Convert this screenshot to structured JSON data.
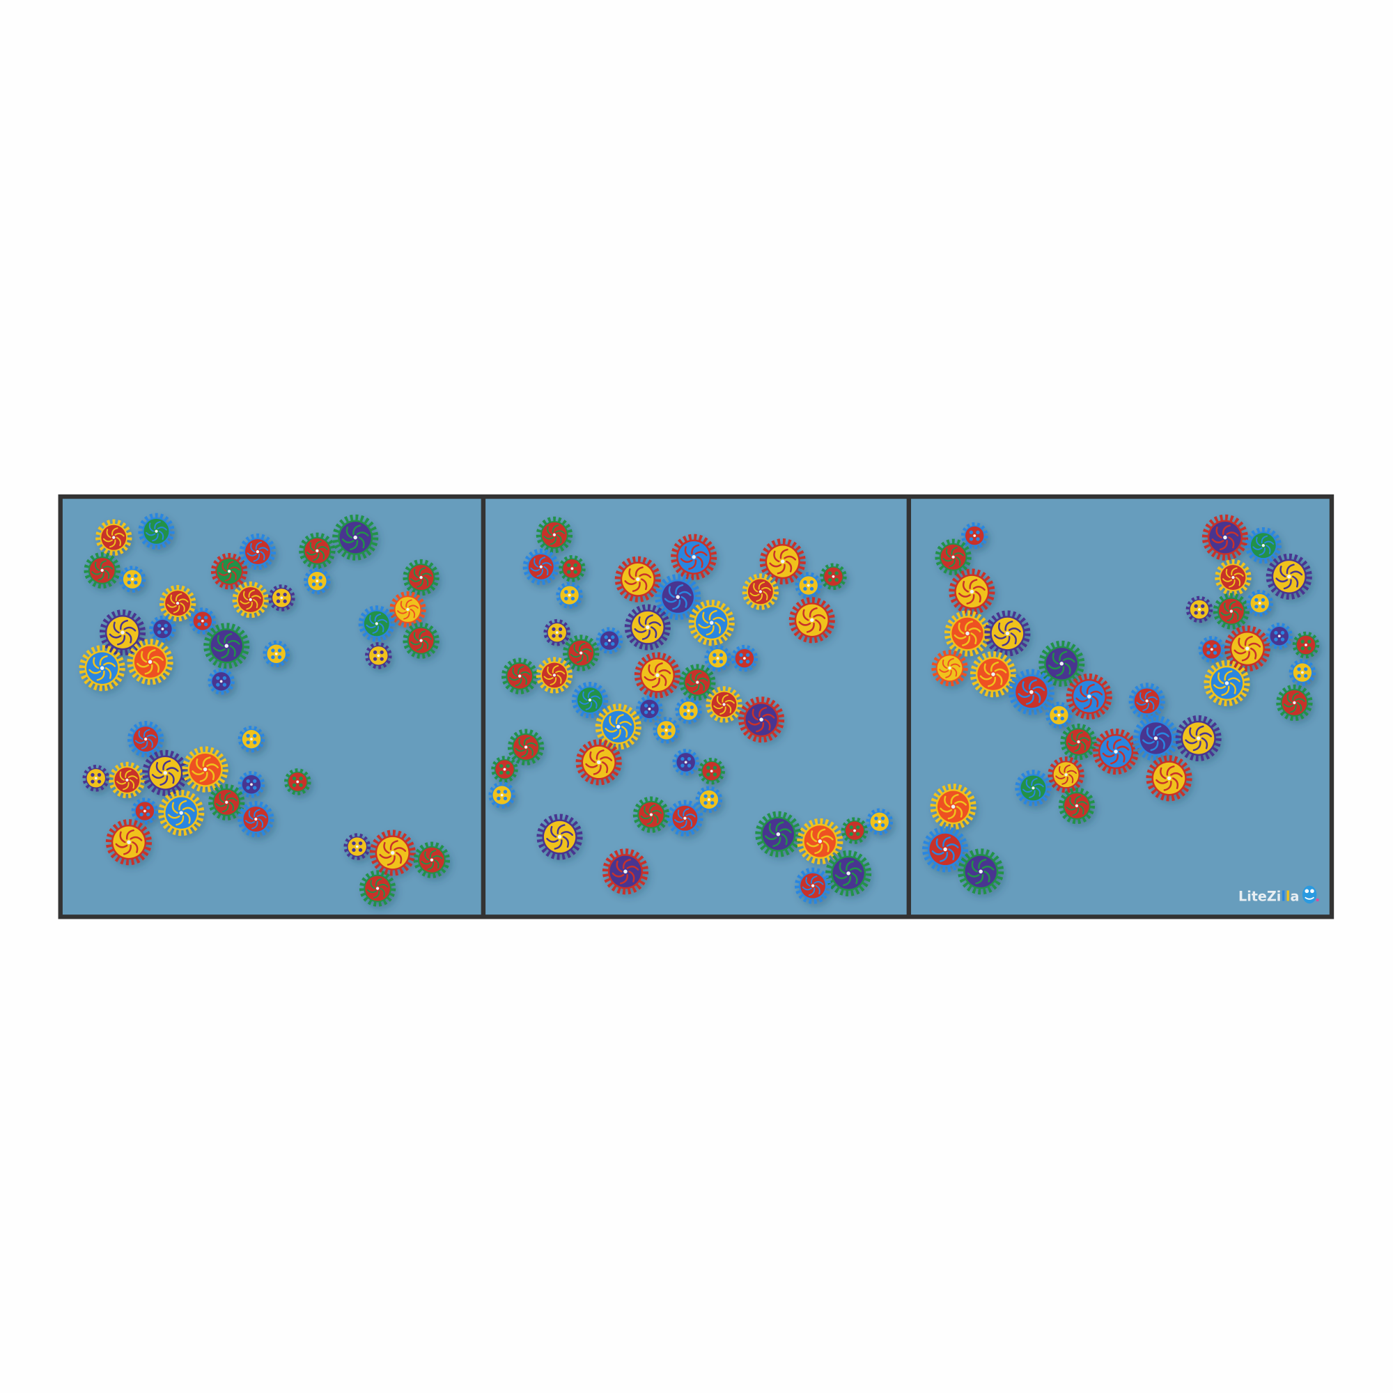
{
  "product": {
    "panel_count": 3,
    "logo": {
      "part1": "LiteZi",
      "part2": "l",
      "part3": "l",
      "part4": "a",
      "mascot": "blue-monster-mascot"
    }
  },
  "colors": {
    "background": "#fefefe",
    "frame": "#333333",
    "board": "#679dbd",
    "gear_red": "#c8302c",
    "gear_yellow": "#f0c21c",
    "gear_green": "#23924a",
    "gear_blue": "#2a86e0",
    "gear_purple": "#4a3590",
    "gear_orange": "#ee5122",
    "logo_text": "#e8eef2",
    "logo_blue": "#2a86e0",
    "logo_yellow": "#f0c21c"
  }
}
